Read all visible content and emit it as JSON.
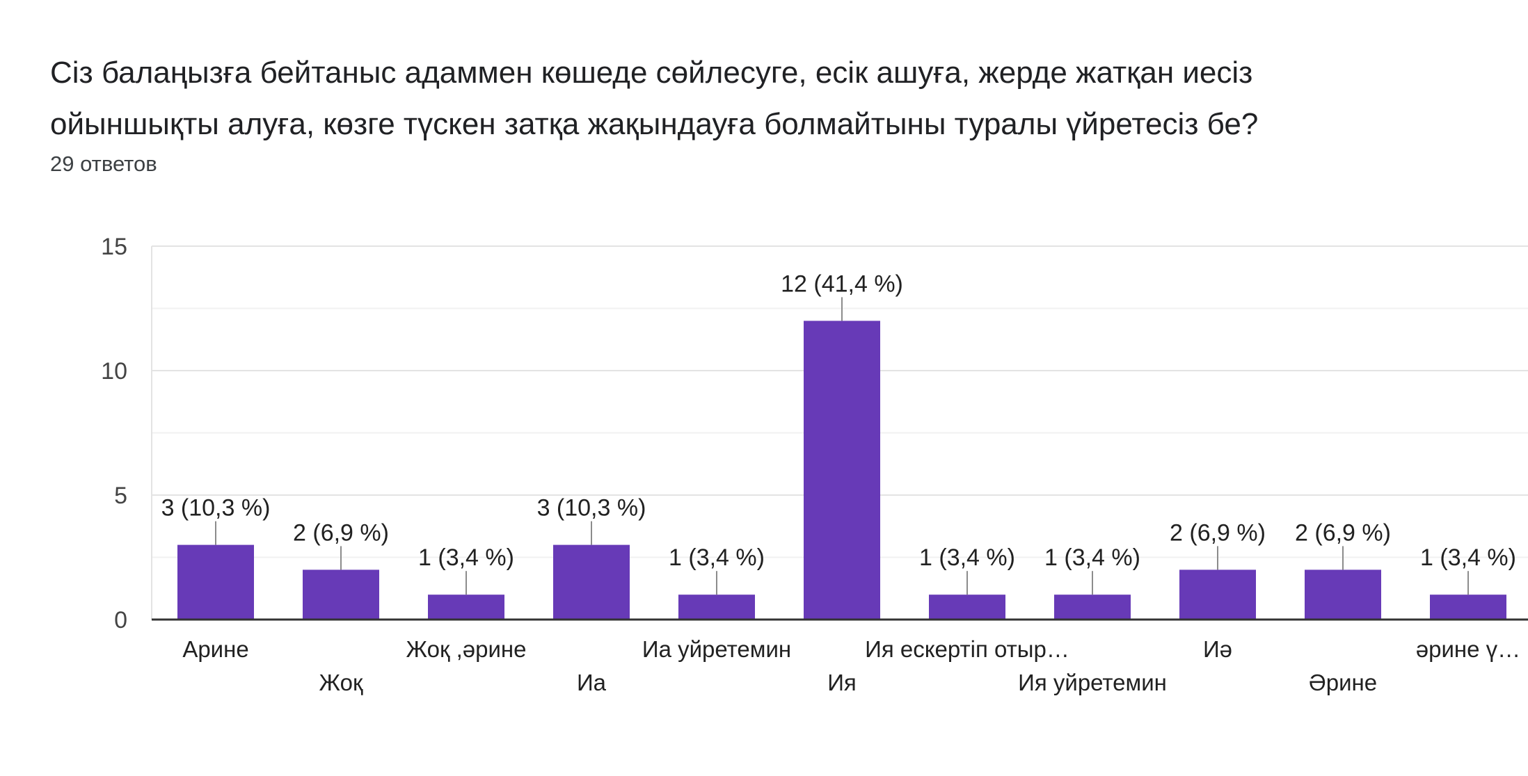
{
  "question": {
    "title_line1": "Сіз балаңызға бейтаныс адаммен көшеде сөйлесуге, есік ашуға, жерде жатқан иесіз",
    "title_line2": "ойыншықты алуға, көзге түскен затқа жақындауға болмайтыны туралы  үйретесіз бе?",
    "responses": "29 ответов"
  },
  "colors": {
    "bar": "#673ab7",
    "grid": "#e8e8e8",
    "axis": "#333333",
    "leader": "#8c8c8c"
  },
  "chart_data": {
    "type": "bar",
    "title": "Сіз балаңызға бейтаныс адаммен көшеде сөйлесуге, есік ашуға, жерде жатқан иесіз ойыншықты алуға, көзге түскен затқа жақындауға болмайтыны туралы  үйретесіз бе?",
    "categories": [
      "Арине",
      "Жоқ",
      "Жоқ ,әрине",
      "Иа",
      "Иа уйретемин",
      "Ия",
      "Ия ескертіп отыр…",
      "Ия уйретемин",
      "Иә",
      "Әрине",
      "әрине ү…"
    ],
    "values": [
      3,
      2,
      1,
      3,
      1,
      12,
      1,
      1,
      2,
      2,
      1
    ],
    "data_labels": [
      "3 (10,3 %)",
      "2 (6,9 %)",
      "1 (3,4 %)",
      "3 (10,3 %)",
      "1 (3,4 %)",
      "12 (41,4 %)",
      "1 (3,4 %)",
      "1 (3,4 %)",
      "2 (6,9 %)",
      "2 (6,9 %)",
      "1 (3,4 %)"
    ],
    "ylim": [
      0,
      15
    ],
    "yticks": [
      "0",
      "5",
      "10",
      "15"
    ],
    "xlabel": "",
    "ylabel": ""
  }
}
